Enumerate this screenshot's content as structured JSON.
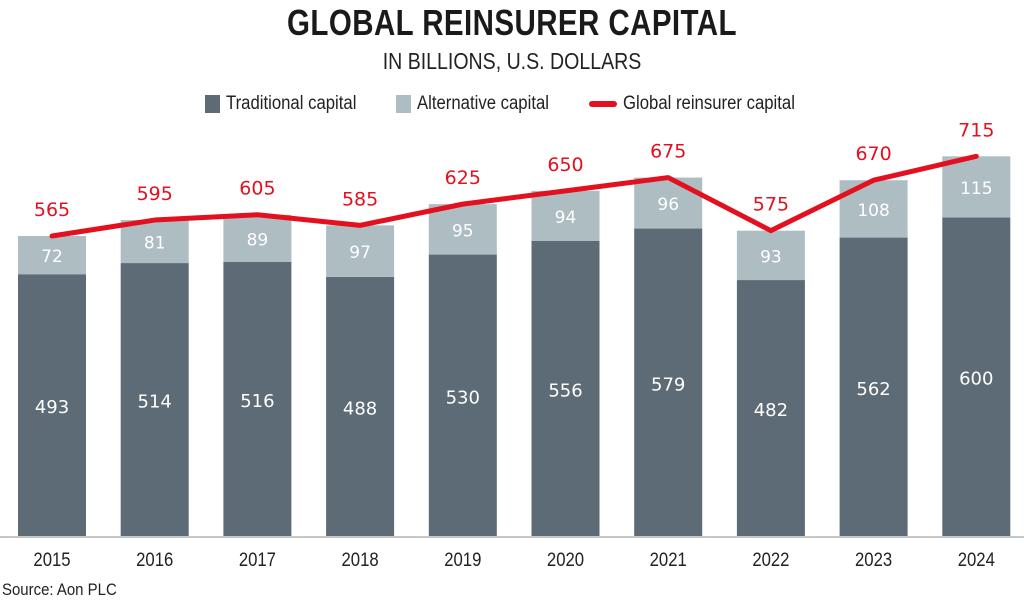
{
  "chart_data": {
    "type": "bar",
    "stacked": true,
    "title": "GLOBAL REINSURER CAPITAL",
    "subtitle": "IN BILLIONS, U.S. DOLLARS",
    "xlabel": "",
    "ylabel": "",
    "ylim": [
      0,
      740
    ],
    "grid": false,
    "legend_position": "top-center",
    "categories": [
      "2015",
      "2016",
      "2017",
      "2018",
      "2019",
      "2020",
      "2021",
      "2022",
      "2023",
      "2024"
    ],
    "series": [
      {
        "name": "Traditional capital",
        "type": "bar",
        "color": "#5c6b75",
        "values": [
          493,
          514,
          516,
          488,
          530,
          556,
          579,
          482,
          562,
          600
        ]
      },
      {
        "name": "Alternative capital",
        "type": "bar",
        "color": "#adbdc2",
        "values": [
          72,
          81,
          89,
          97,
          95,
          94,
          96,
          93,
          108,
          115
        ]
      },
      {
        "name": "Global reinsurer capital",
        "type": "line",
        "color": "#e3101f",
        "values": [
          565,
          595,
          605,
          585,
          625,
          650,
          675,
          575,
          670,
          715
        ]
      }
    ],
    "source": "Source: Aon PLC"
  },
  "colors": {
    "traditional": "#5c6b75",
    "alternative": "#adbdc2",
    "line": "#e3101f",
    "bar_label": "#ffffff",
    "axis": "#b5b5b5"
  }
}
